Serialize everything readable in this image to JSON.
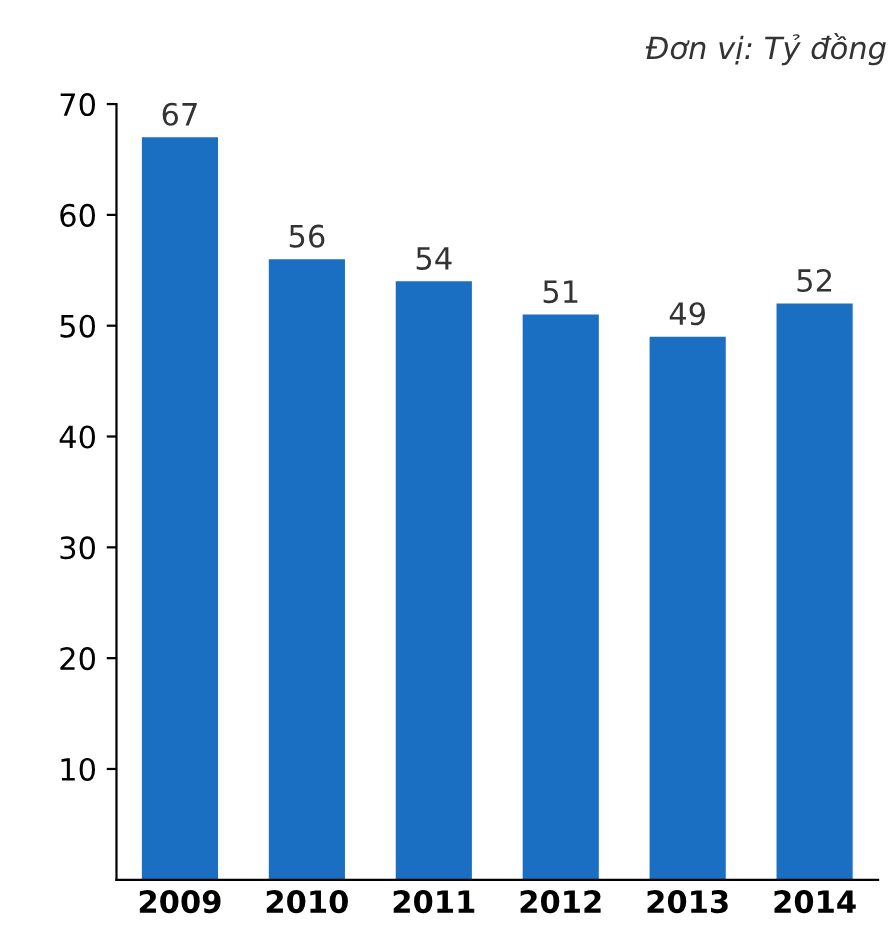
{
  "chart_data": {
    "type": "bar",
    "annotations": [
      "Đơn vị: Tỷ đồng"
    ],
    "categories": [
      "2009",
      "2010",
      "2011",
      "2012",
      "2013",
      "2014"
    ],
    "values": [
      67,
      56,
      54,
      51,
      49,
      52
    ],
    "color": "#1b6fc2",
    "ylim": [
      0,
      70
    ],
    "yticks": [
      10,
      20,
      30,
      40,
      50,
      60,
      70
    ],
    "data_labels": true,
    "grid": false,
    "legend": false
  }
}
